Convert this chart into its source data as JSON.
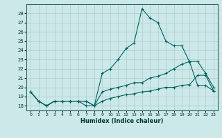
{
  "xlabel": "Humidex (Indice chaleur)",
  "bg_color": "#cce8e8",
  "grid_color": "#aacece",
  "line_color": "#006060",
  "xlim": [
    -0.5,
    23.5
  ],
  "ylim": [
    17.5,
    29.0
  ],
  "xticks": [
    0,
    1,
    2,
    3,
    4,
    5,
    6,
    7,
    8,
    9,
    10,
    11,
    12,
    13,
    14,
    15,
    16,
    17,
    18,
    19,
    20,
    21,
    22,
    23
  ],
  "yticks": [
    18,
    19,
    20,
    21,
    22,
    23,
    24,
    25,
    26,
    27,
    28
  ],
  "series": [
    [
      19.5,
      18.5,
      18.0,
      18.5,
      18.5,
      18.5,
      18.5,
      18.5,
      18.0,
      21.5,
      22.0,
      23.0,
      24.2,
      24.8,
      28.5,
      27.5,
      27.0,
      25.0,
      24.5,
      24.5,
      22.7,
      20.2,
      20.2,
      19.6
    ],
    [
      19.5,
      18.5,
      18.0,
      18.5,
      18.5,
      18.5,
      18.5,
      18.0,
      18.0,
      19.5,
      19.8,
      20.0,
      20.2,
      20.5,
      20.5,
      21.0,
      21.2,
      21.5,
      22.0,
      22.5,
      22.8,
      22.8,
      21.5,
      20.0
    ],
    [
      19.5,
      18.5,
      18.0,
      18.5,
      18.5,
      18.5,
      18.5,
      18.5,
      18.0,
      18.5,
      18.8,
      19.0,
      19.2,
      19.3,
      19.5,
      19.6,
      19.8,
      20.0,
      20.0,
      20.2,
      20.3,
      21.3,
      21.3,
      19.6
    ]
  ]
}
